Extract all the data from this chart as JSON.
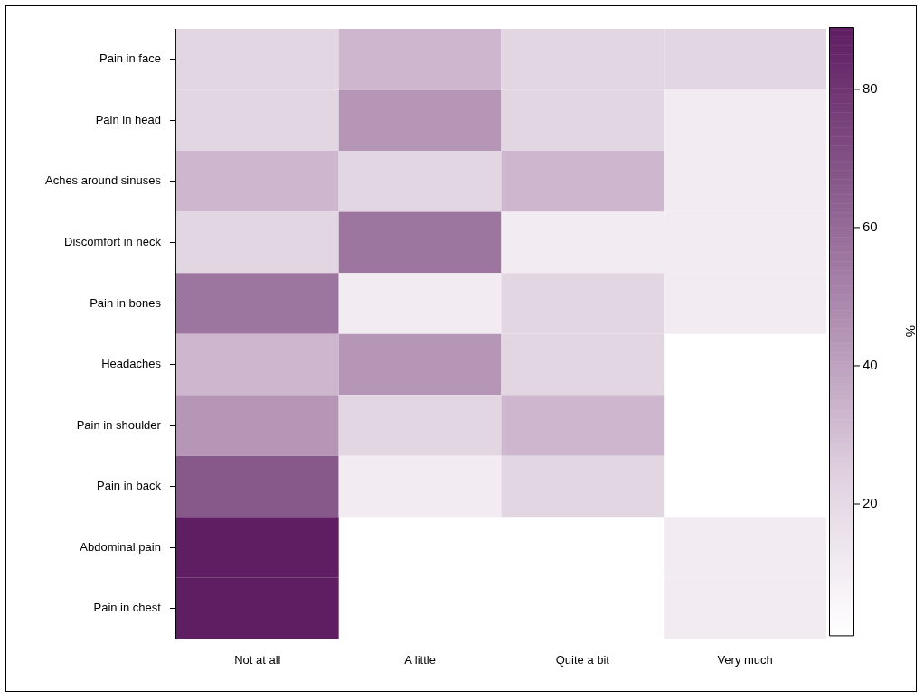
{
  "chart_data": {
    "type": "heatmap",
    "clabel": "%",
    "categories": [
      "Not at all",
      "A little",
      "Quite a bit",
      "Very much"
    ],
    "y_categories": [
      "Pain in face",
      "Pain in head",
      "Aches around sinuses",
      "Discomfort in neck",
      "Pain in bones",
      "Headaches",
      "Pain in shoulder",
      "Pain in back",
      "Abdominal pain",
      "Pain in chest"
    ],
    "cells": [
      [
        22,
        33,
        22,
        22
      ],
      [
        22,
        44,
        22,
        11
      ],
      [
        33,
        22,
        33,
        11
      ],
      [
        22,
        56,
        11,
        11
      ],
      [
        56,
        11,
        22,
        11
      ],
      [
        33,
        44,
        22,
        null
      ],
      [
        44,
        22,
        33,
        null
      ],
      [
        67,
        11,
        22,
        null
      ],
      [
        89,
        null,
        null,
        11
      ],
      [
        89,
        null,
        null,
        11
      ]
    ],
    "clim": [
      1,
      89
    ],
    "cticks": [
      20,
      40,
      60,
      80
    ]
  }
}
